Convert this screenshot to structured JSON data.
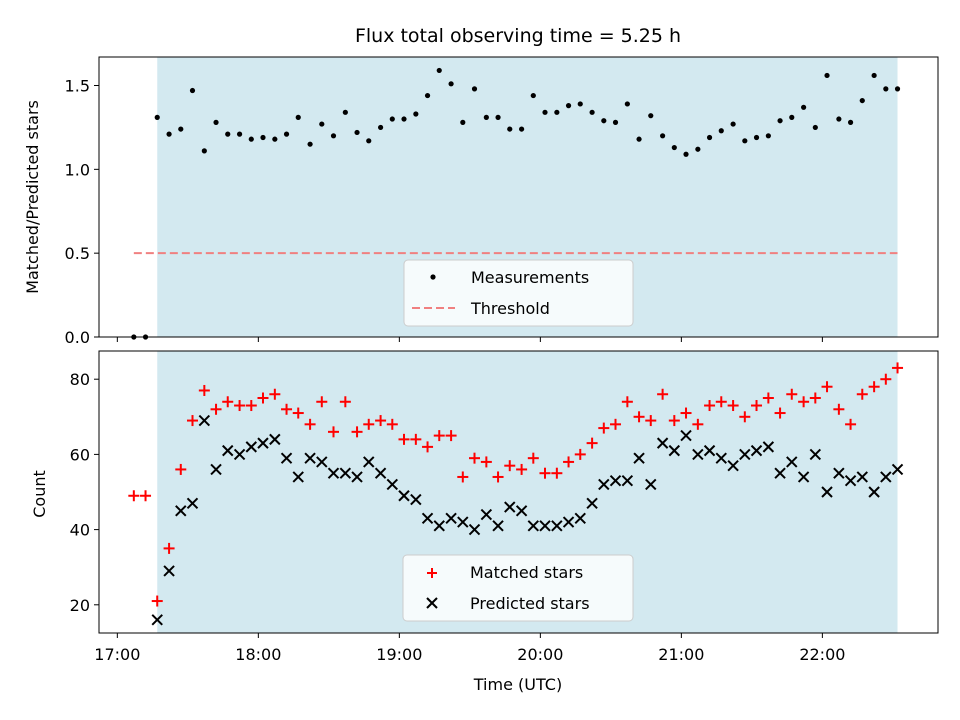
{
  "chart_data": [
    {
      "type": "scatter",
      "title": "Flux total observing time = 5.25 h",
      "xlabel": "",
      "ylabel": "Matched/Predicted stars",
      "xlim": [
        16.87,
        22.82
      ],
      "ylim": [
        0.0,
        1.67
      ],
      "yticks": [
        0.0,
        0.5,
        1.0,
        1.5
      ],
      "ytick_labels": [
        "0.0",
        "0.5",
        "1.0",
        "1.5"
      ],
      "xticks": [
        17,
        18,
        19,
        20,
        21,
        22
      ],
      "observing_window": [
        17.283,
        22.533
      ],
      "shade_color": "#d3e9f0",
      "legend": {
        "placement": "lower-center",
        "entries": [
          {
            "label": "Measurements",
            "marker": "dot",
            "color": "#000000"
          },
          {
            "label": "Threshold",
            "marker": "dashed-line",
            "color": "#f08080"
          }
        ]
      },
      "series": [
        {
          "name": "Measurements",
          "marker": "dot",
          "color": "#000000",
          "x": [
            17.117,
            17.2,
            17.283,
            17.367,
            17.45,
            17.533,
            17.617,
            17.7,
            17.783,
            17.867,
            17.95,
            18.033,
            18.117,
            18.2,
            18.283,
            18.367,
            18.45,
            18.533,
            18.617,
            18.7,
            18.783,
            18.867,
            18.95,
            19.033,
            19.117,
            19.2,
            19.283,
            19.367,
            19.45,
            19.533,
            19.617,
            19.7,
            19.783,
            19.867,
            19.95,
            20.033,
            20.117,
            20.2,
            20.283,
            20.367,
            20.45,
            20.533,
            20.617,
            20.7,
            20.783,
            20.867,
            20.95,
            21.033,
            21.117,
            21.2,
            21.283,
            21.367,
            21.45,
            21.533,
            21.617,
            21.7,
            21.783,
            21.867,
            21.95,
            22.033,
            22.117,
            22.2,
            22.283,
            22.367,
            22.45,
            22.533
          ],
          "y": [
            0.0,
            0.0,
            1.31,
            1.21,
            1.24,
            1.47,
            1.11,
            1.28,
            1.21,
            1.21,
            1.18,
            1.19,
            1.18,
            1.21,
            1.31,
            1.15,
            1.27,
            1.2,
            1.34,
            1.22,
            1.17,
            1.25,
            1.3,
            1.3,
            1.33,
            1.44,
            1.59,
            1.51,
            1.28,
            1.48,
            1.31,
            1.31,
            1.24,
            1.24,
            1.44,
            1.34,
            1.34,
            1.38,
            1.39,
            1.34,
            1.29,
            1.28,
            1.39,
            1.18,
            1.32,
            1.2,
            1.13,
            1.09,
            1.12,
            1.19,
            1.23,
            1.27,
            1.17,
            1.19,
            1.2,
            1.29,
            1.31,
            1.37,
            1.25,
            1.56,
            1.3,
            1.28,
            1.41,
            1.56,
            1.48,
            1.48
          ]
        },
        {
          "name": "Threshold",
          "type": "line",
          "style": "dashed",
          "color": "#f08080",
          "x": [
            17.117,
            22.533
          ],
          "y": [
            0.5,
            0.5
          ]
        }
      ]
    },
    {
      "type": "scatter",
      "title": "",
      "xlabel": "Time (UTC)",
      "ylabel": "Count",
      "xlim": [
        16.87,
        22.82
      ],
      "ylim": [
        12.5,
        87.5
      ],
      "yticks": [
        20,
        40,
        60,
        80
      ],
      "ytick_labels": [
        "20",
        "40",
        "60",
        "80"
      ],
      "xticks": [
        17,
        18,
        19,
        20,
        21,
        22
      ],
      "xtick_labels": [
        "17:00",
        "18:00",
        "19:00",
        "20:00",
        "21:00",
        "22:00"
      ],
      "observing_window": [
        17.283,
        22.533
      ],
      "shade_color": "#d3e9f0",
      "legend": {
        "placement": "lower-center",
        "entries": [
          {
            "label": "Matched stars",
            "marker": "plus",
            "color": "#ff0000"
          },
          {
            "label": "Predicted stars",
            "marker": "x",
            "color": "#000000"
          }
        ]
      },
      "series": [
        {
          "name": "Matched stars",
          "marker": "plus",
          "color": "#ff0000",
          "x": [
            17.117,
            17.2,
            17.283,
            17.367,
            17.45,
            17.533,
            17.617,
            17.7,
            17.783,
            17.867,
            17.95,
            18.033,
            18.117,
            18.2,
            18.283,
            18.367,
            18.45,
            18.533,
            18.617,
            18.7,
            18.783,
            18.867,
            18.95,
            19.033,
            19.117,
            19.2,
            19.283,
            19.367,
            19.45,
            19.533,
            19.617,
            19.7,
            19.783,
            19.867,
            19.95,
            20.033,
            20.117,
            20.2,
            20.283,
            20.367,
            20.45,
            20.533,
            20.617,
            20.7,
            20.783,
            20.867,
            20.95,
            21.033,
            21.117,
            21.2,
            21.283,
            21.367,
            21.45,
            21.533,
            21.617,
            21.7,
            21.783,
            21.867,
            21.95,
            22.033,
            22.117,
            22.2,
            22.283,
            22.367,
            22.45,
            22.533
          ],
          "y": [
            49,
            49,
            21,
            35,
            56,
            69,
            77,
            72,
            74,
            73,
            73,
            75,
            76,
            72,
            71,
            68,
            74,
            66,
            74,
            66,
            68,
            69,
            68,
            64,
            64,
            62,
            65,
            65,
            54,
            59,
            58,
            54,
            57,
            56,
            59,
            55,
            55,
            58,
            60,
            63,
            67,
            68,
            74,
            70,
            69,
            76,
            69,
            71,
            68,
            73,
            74,
            73,
            70,
            73,
            75,
            71,
            76,
            74,
            75,
            78,
            72,
            68,
            76,
            78,
            80,
            83
          ]
        },
        {
          "name": "Predicted stars",
          "marker": "x",
          "color": "#000000",
          "x": [
            17.283,
            17.367,
            17.45,
            17.533,
            17.617,
            17.7,
            17.783,
            17.867,
            17.95,
            18.033,
            18.117,
            18.2,
            18.283,
            18.367,
            18.45,
            18.533,
            18.617,
            18.7,
            18.783,
            18.867,
            18.95,
            19.033,
            19.117,
            19.2,
            19.283,
            19.367,
            19.45,
            19.533,
            19.617,
            19.7,
            19.783,
            19.867,
            19.95,
            20.033,
            20.117,
            20.2,
            20.283,
            20.367,
            20.45,
            20.533,
            20.617,
            20.7,
            20.783,
            20.867,
            20.95,
            21.033,
            21.117,
            21.2,
            21.283,
            21.367,
            21.45,
            21.533,
            21.617,
            21.7,
            21.783,
            21.867,
            21.95,
            22.033,
            22.117,
            22.2,
            22.283,
            22.367,
            22.45,
            22.533
          ],
          "y": [
            16,
            29,
            45,
            47,
            69,
            56,
            61,
            60,
            62,
            63,
            64,
            59,
            54,
            59,
            58,
            55,
            55,
            54,
            58,
            55,
            52,
            49,
            48,
            43,
            41,
            43,
            42,
            40,
            44,
            41,
            46,
            45,
            41,
            41,
            41,
            42,
            43,
            47,
            52,
            53,
            53,
            59,
            52,
            63,
            61,
            65,
            60,
            61,
            59,
            57,
            60,
            61,
            62,
            55,
            58,
            54,
            60,
            50,
            55,
            53,
            54,
            50,
            54,
            56
          ]
        }
      ]
    }
  ]
}
